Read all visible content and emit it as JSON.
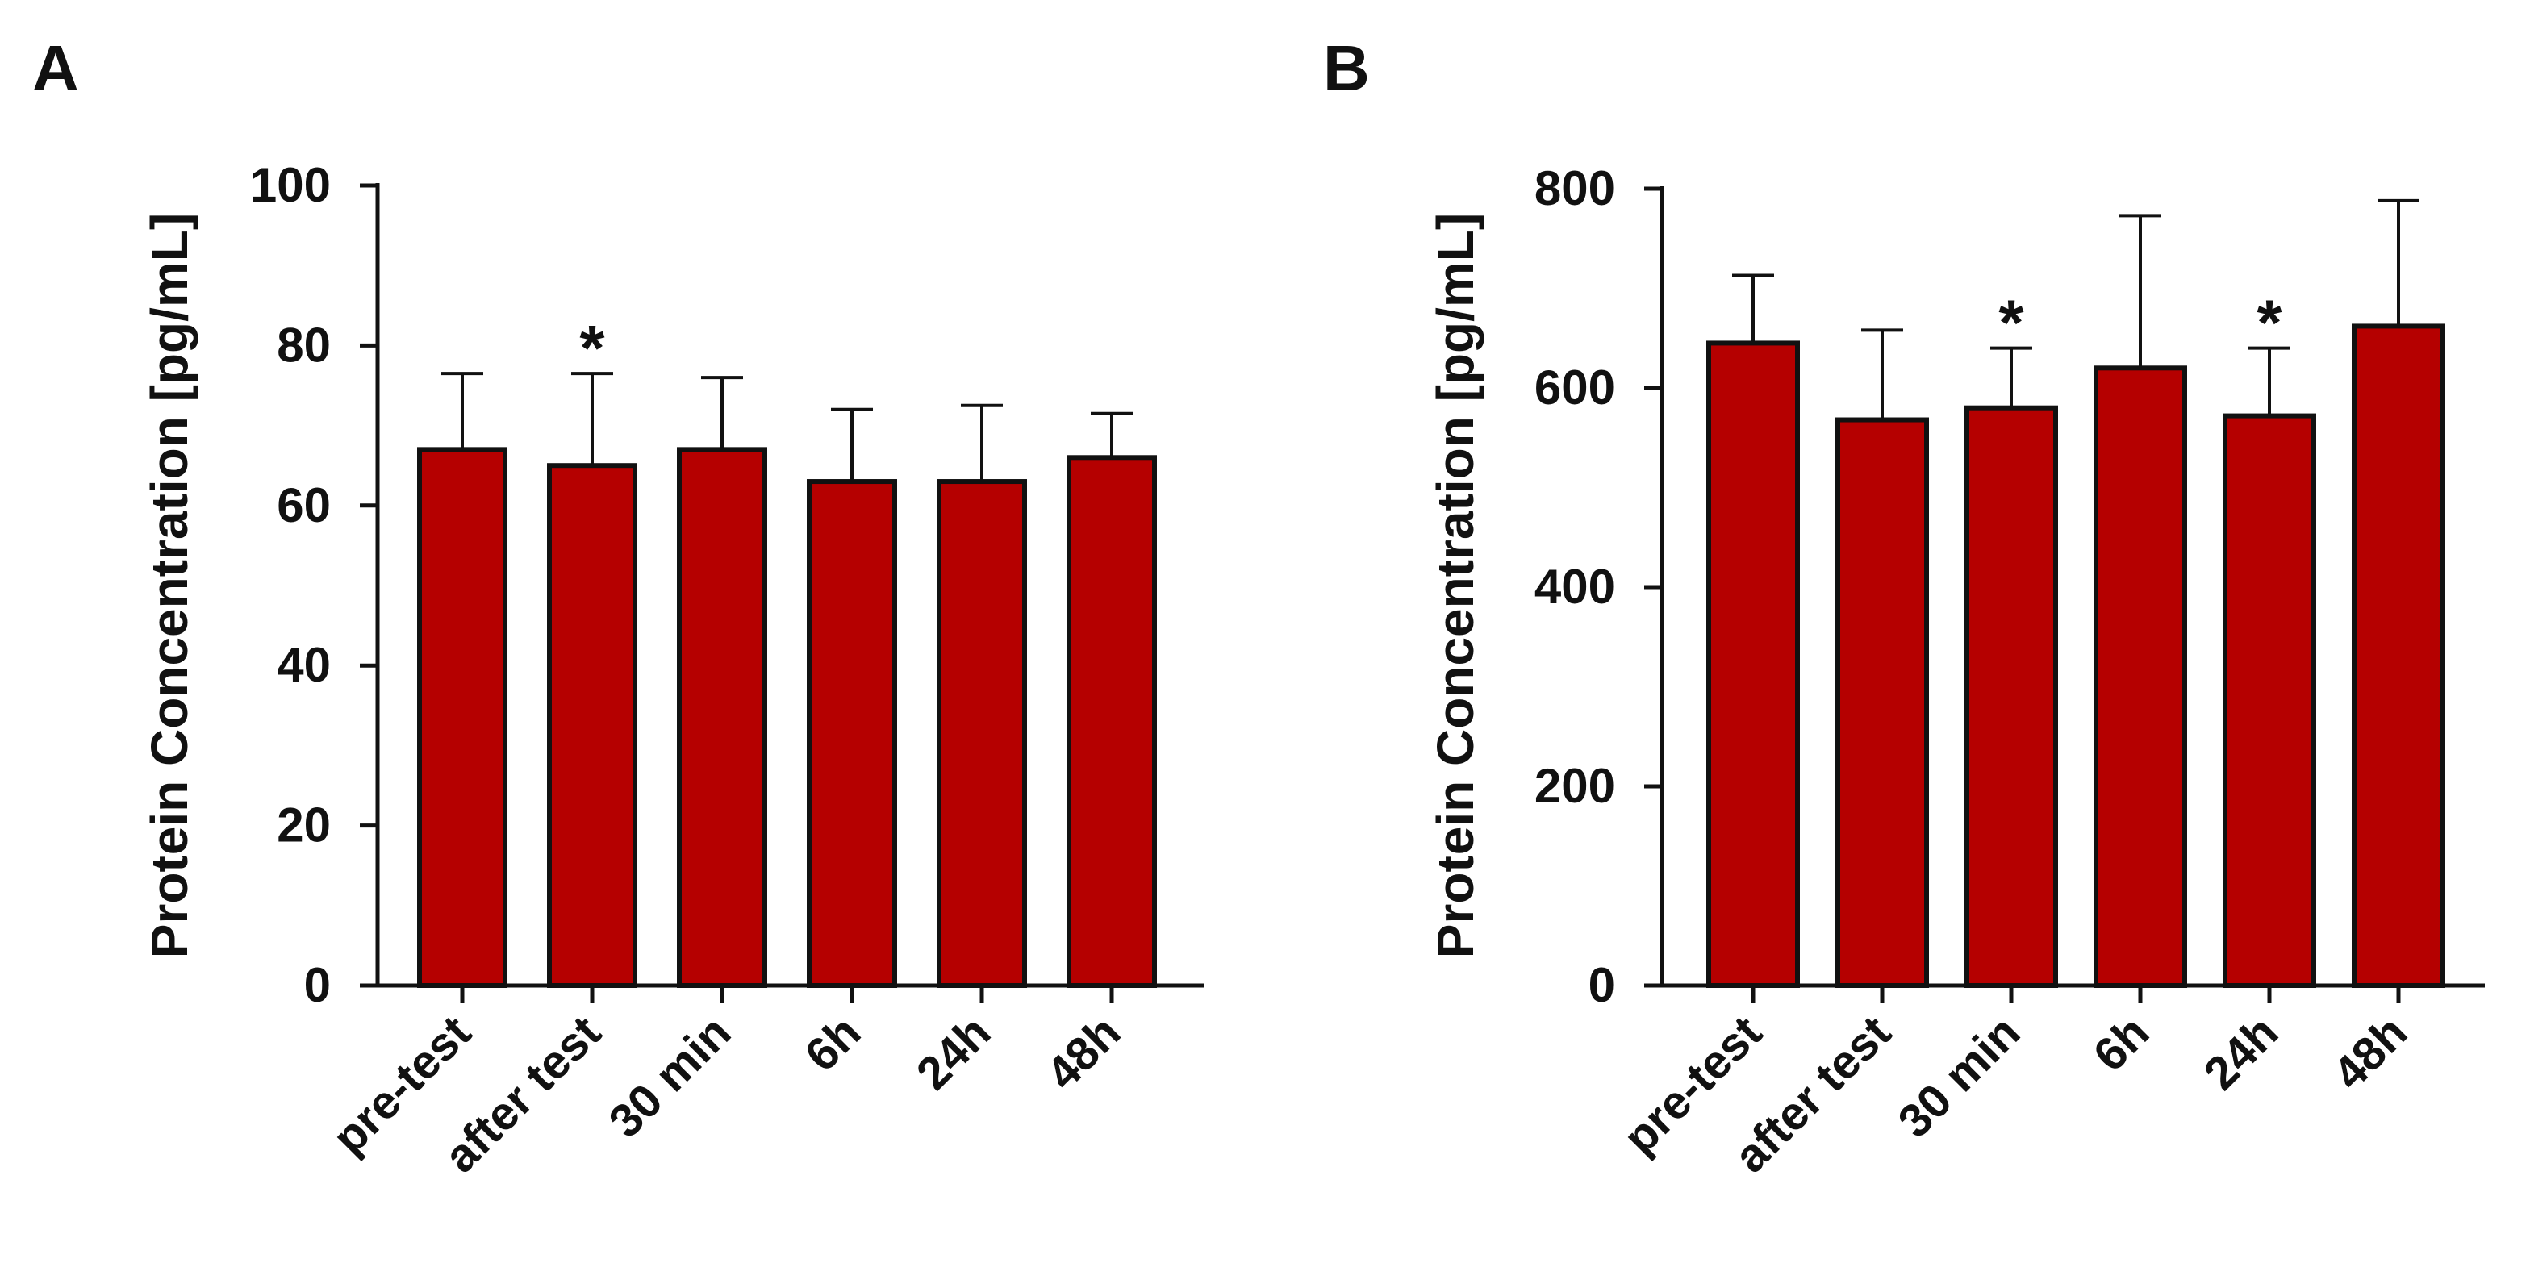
{
  "figure": {
    "panels": [
      "A",
      "B"
    ],
    "bar_color": "#B50000",
    "axis_color": "#111111"
  },
  "chart_data": [
    {
      "type": "bar",
      "panel_label": "A",
      "title": "",
      "xlabel": "",
      "ylabel": "Protein Concentration [pg/mL]",
      "ylim": [
        0,
        100
      ],
      "yticks": [
        0,
        20,
        40,
        60,
        80,
        100
      ],
      "categories": [
        "pre-test",
        "after test",
        "30 min",
        "6h",
        "24h",
        "48h"
      ],
      "series": [
        {
          "name": "Protein Concentration",
          "values": [
            67,
            65,
            67,
            63,
            63,
            66
          ],
          "error_upper": [
            76.5,
            76.5,
            76,
            72,
            72.5,
            71.5
          ]
        }
      ],
      "annotations": [
        {
          "category": "after test",
          "text": "*"
        }
      ]
    },
    {
      "type": "bar",
      "panel_label": "B",
      "title": "",
      "xlabel": "",
      "ylabel": "Protein Concentration [pg/mL]",
      "ylim": [
        0,
        800
      ],
      "yticks": [
        0,
        200,
        400,
        600,
        800
      ],
      "categories": [
        "pre-test",
        "after test",
        "30 min",
        "6h",
        "24h",
        "48h"
      ],
      "series": [
        {
          "name": "Protein Concentration",
          "values": [
            645,
            568,
            580,
            620,
            572,
            662
          ],
          "error_upper": [
            713,
            658,
            640,
            773,
            640,
            788
          ]
        }
      ],
      "annotations": [
        {
          "category": "30 min",
          "text": "*"
        },
        {
          "category": "24h",
          "text": "*"
        }
      ]
    }
  ]
}
